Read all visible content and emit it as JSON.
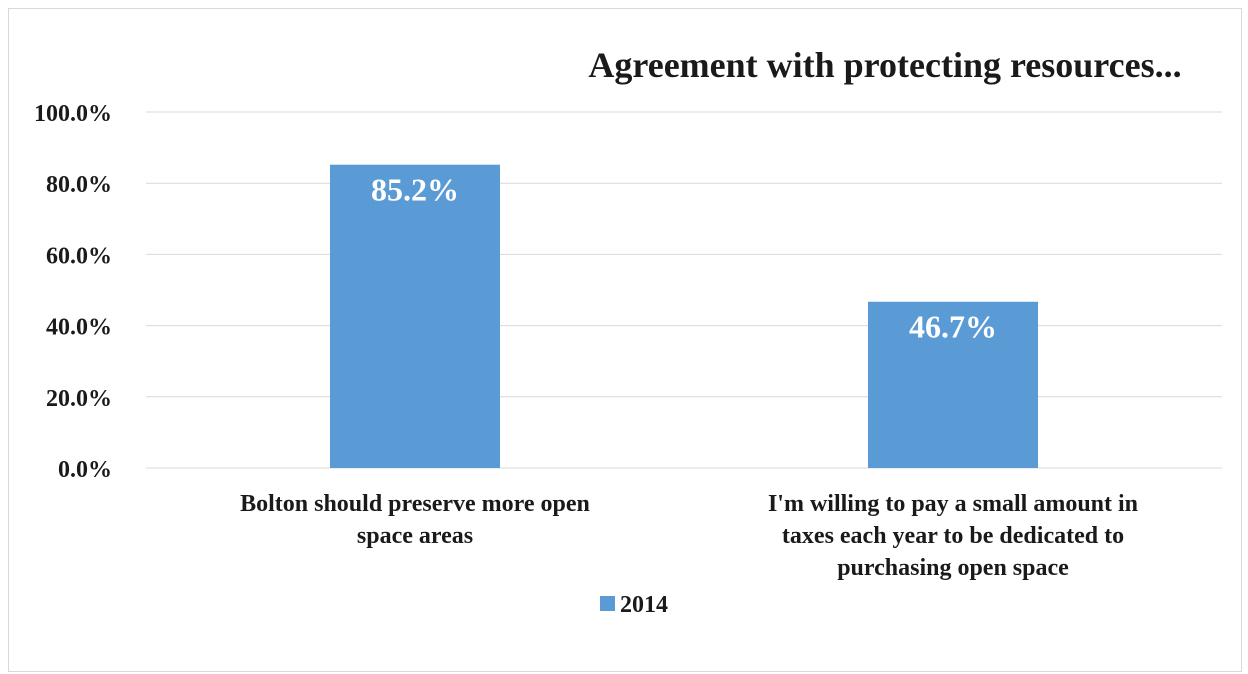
{
  "chart_data": {
    "type": "bar",
    "title": "Agreement with protecting resources...",
    "xlabel": "",
    "ylabel": "",
    "categories": [
      [
        "Bolton should preserve more open",
        "space areas"
      ],
      [
        "I'm willing to pay a small amount in",
        "taxes each year to be dedicated to",
        "purchasing open space"
      ]
    ],
    "series": [
      {
        "name": "2014",
        "values": [
          85.2,
          46.7
        ],
        "data_labels": [
          "85.2%",
          "46.7%"
        ]
      }
    ],
    "ylim": [
      0,
      100
    ],
    "y_ticks": [
      "0.0%",
      "20.0%",
      "40.0%",
      "60.0%",
      "80.0%",
      "100.0%"
    ],
    "y_tick_values": [
      0,
      20,
      40,
      60,
      80,
      100
    ],
    "grid": true,
    "legend_position": "bottom",
    "colors": {
      "bar": "#5b9bd5",
      "grid": "#d9d9d9",
      "text": "#1a1a1a",
      "data_label": "#ffffff"
    }
  }
}
